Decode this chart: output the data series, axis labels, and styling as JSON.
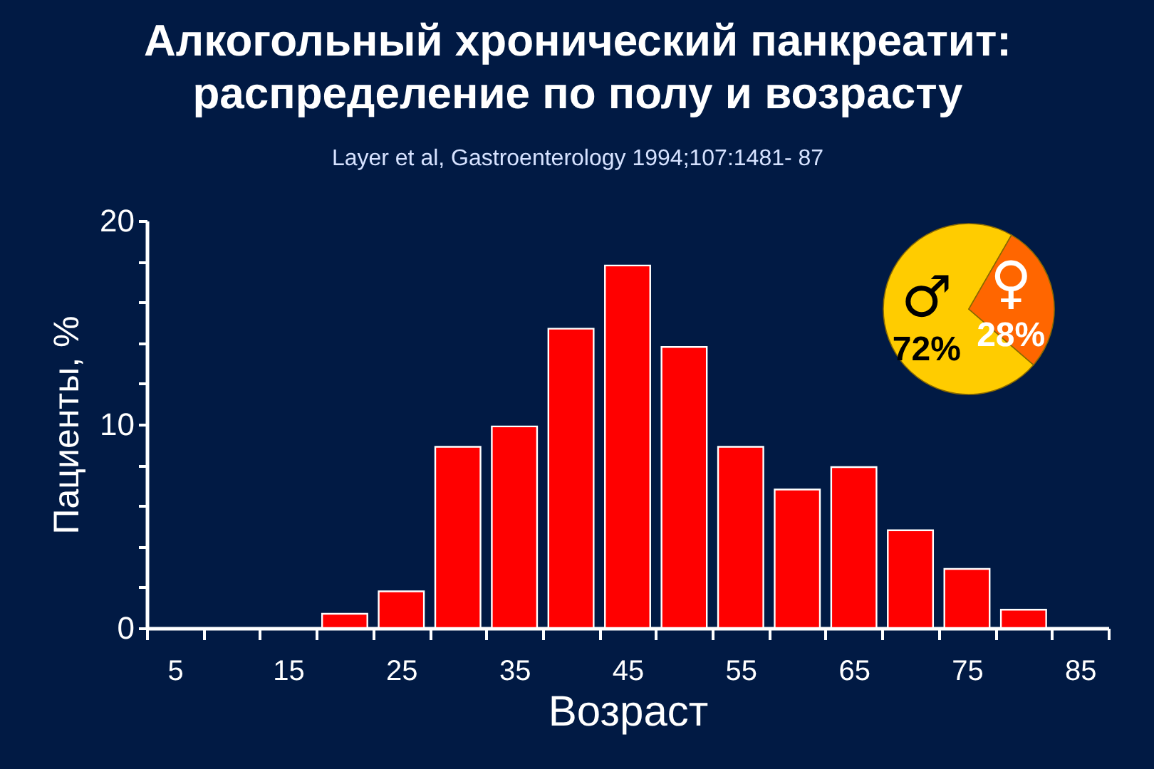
{
  "chart_data": [
    {
      "type": "bar",
      "title": "Алкогольный хронический панкреатит:\nраспределение по полу и возрасту",
      "subtitle": "Layer et al, Gastroenterology 1994;107:1481- 87",
      "xlabel": "Возраст",
      "ylabel": "Пациенты, %",
      "x": [
        20,
        25,
        30,
        35,
        40,
        45,
        50,
        55,
        60,
        65,
        70,
        75,
        80
      ],
      "values": [
        0.7,
        1.8,
        8.9,
        9.9,
        14.7,
        17.8,
        13.8,
        8.9,
        6.8,
        7.9,
        4.8,
        2.9,
        0.9
      ],
      "color": "#ff0000",
      "xlim": [
        2.5,
        87.5
      ],
      "xticks": [
        {
          "value": 2.5,
          "label": null
        },
        5,
        {
          "value": 7.5,
          "label": null
        },
        {
          "value": 12.5,
          "label": null
        },
        15,
        {
          "value": 17.5,
          "label": null
        },
        {
          "value": 22.5,
          "label": null
        },
        25,
        {
          "value": 27.5,
          "label": null
        },
        {
          "value": 32.5,
          "label": null
        },
        35,
        {
          "value": 37.5,
          "label": null
        },
        {
          "value": 42.5,
          "label": null
        },
        45,
        {
          "value": 47.5,
          "label": null
        },
        {
          "value": 52.5,
          "label": null
        },
        55,
        {
          "value": 57.5,
          "label": null
        },
        {
          "value": 62.5,
          "label": null
        },
        65,
        {
          "value": 67.5,
          "label": null
        },
        {
          "value": 72.5,
          "label": null
        },
        75,
        {
          "value": 77.5,
          "label": null
        },
        {
          "value": 82.5,
          "label": null
        },
        85,
        {
          "value": 87.5,
          "label": null
        }
      ],
      "ylim": [
        0,
        20
      ],
      "yticks": [
        0,
        {
          "value": 2,
          "label": null
        },
        {
          "value": 4,
          "label": null
        },
        {
          "value": 6,
          "label": null
        },
        {
          "value": 8,
          "label": null
        },
        10,
        {
          "value": 12,
          "label": null
        },
        {
          "value": 14,
          "label": null
        },
        {
          "value": 16,
          "label": null
        },
        {
          "value": 18,
          "label": null
        },
        20
      ]
    },
    {
      "type": "pie",
      "categories": [
        "♂",
        "♀"
      ],
      "values": [
        72,
        28
      ],
      "colors": [
        "#ffcc00",
        "#ff6600"
      ],
      "value_labels": [
        "72%",
        "28%"
      ]
    }
  ]
}
